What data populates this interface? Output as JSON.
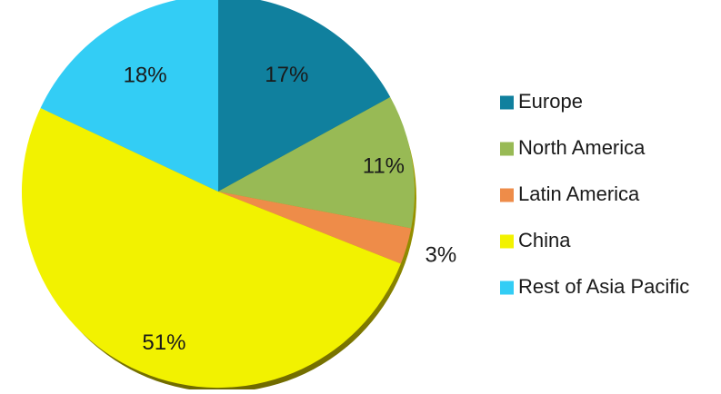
{
  "chart_data": {
    "type": "pie",
    "title": "",
    "categories": [
      "Europe",
      "North America",
      "Latin America",
      "China",
      "Rest of Asia Pacific"
    ],
    "values": [
      17,
      11,
      3,
      51,
      18
    ],
    "value_labels": [
      "17%",
      "11%",
      "3%",
      "51%",
      "18%"
    ],
    "unit": "%",
    "start_angle": "12 o'clock",
    "direction": "clockwise",
    "legend_position": "right",
    "colors": [
      "#10809e",
      "#98ba55",
      "#ee8c49",
      "#f2f200",
      "#33cdf5"
    ]
  }
}
